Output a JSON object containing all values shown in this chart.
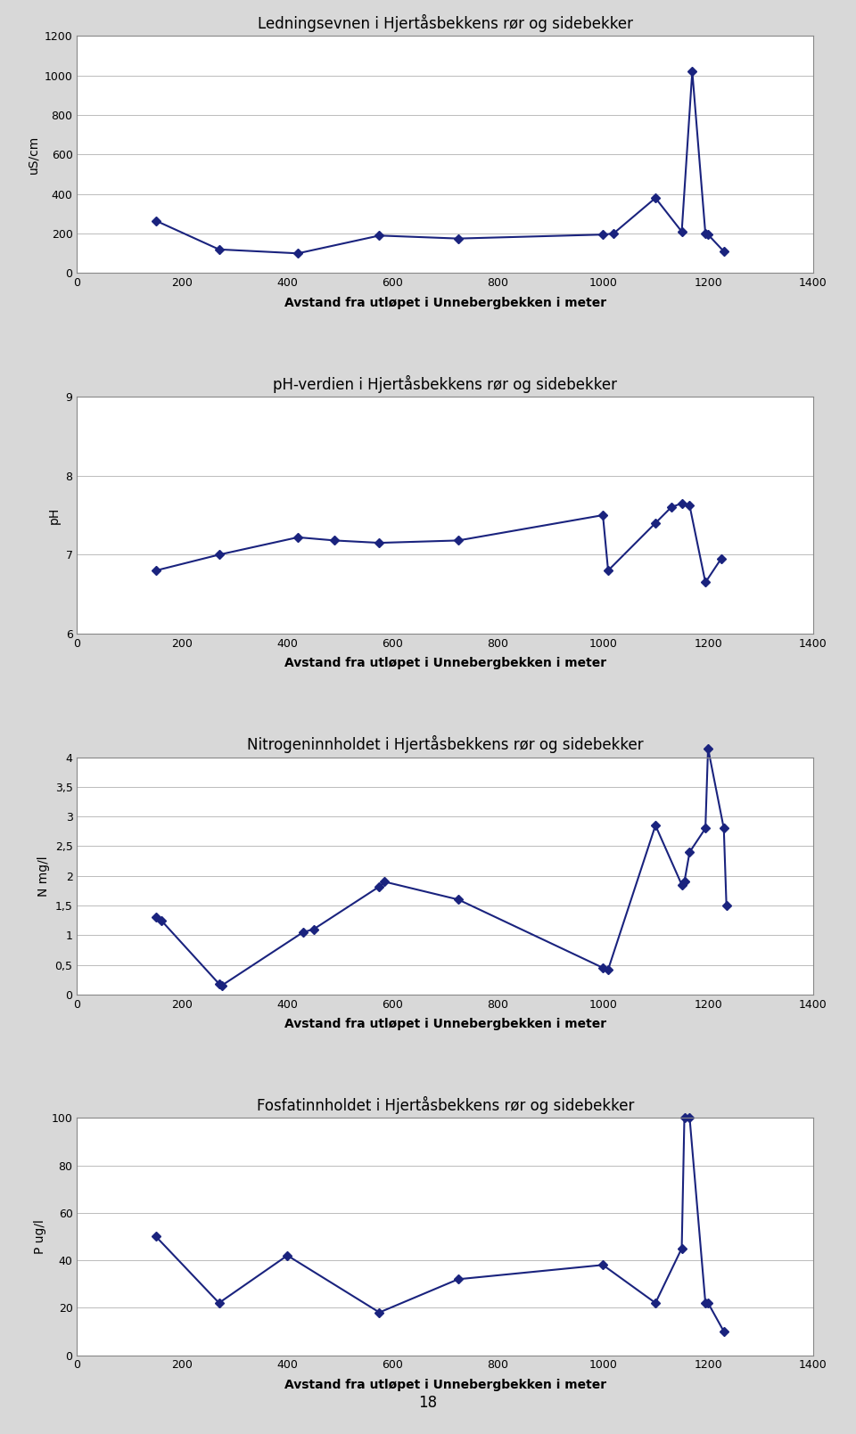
{
  "chart1": {
    "title": "Ledningsevnen i Hjertåsbekkens rør og sidebekker",
    "xlabel": "Avstand fra utløpet i Unnebergbekken i meter",
    "ylabel": "uS/cm",
    "x": [
      150,
      270,
      420,
      575,
      725,
      1000,
      1020,
      1100,
      1150,
      1170,
      1195,
      1200,
      1230
    ],
    "y": [
      265,
      120,
      100,
      190,
      175,
      195,
      200,
      380,
      210,
      1020,
      200,
      195,
      110
    ],
    "ylim": [
      0,
      1200
    ],
    "yticks": [
      0,
      200,
      400,
      600,
      800,
      1000,
      1200
    ],
    "xlim": [
      0,
      1400
    ],
    "xticks": [
      0,
      200,
      400,
      600,
      800,
      1000,
      1200,
      1400
    ]
  },
  "chart2": {
    "title": "pH-verdien i Hjertåsbekkens rør og sidebekker",
    "xlabel": "Avstand fra utløpet i Unnebergbekken i meter",
    "ylabel": "pH",
    "x": [
      150,
      270,
      420,
      490,
      575,
      725,
      1000,
      1010,
      1100,
      1130,
      1150,
      1165,
      1195,
      1225
    ],
    "y": [
      6.8,
      7.0,
      7.22,
      7.18,
      7.15,
      7.18,
      7.5,
      6.8,
      7.4,
      7.6,
      7.65,
      7.62,
      6.65,
      6.95
    ],
    "ylim": [
      6,
      9
    ],
    "yticks": [
      6,
      7,
      8,
      9
    ],
    "xlim": [
      0,
      1400
    ],
    "xticks": [
      0,
      200,
      400,
      600,
      800,
      1000,
      1200,
      1400
    ]
  },
  "chart3": {
    "title": "Nitrogeninnholdet i Hjertåsbekkens rør og sidebekker",
    "xlabel": "Avstand fra utløpet i Unnebergbekken i meter",
    "ylabel": "N mg/l",
    "x": [
      150,
      160,
      270,
      275,
      430,
      450,
      575,
      585,
      725,
      1000,
      1010,
      1100,
      1150,
      1155,
      1165,
      1195,
      1200,
      1230,
      1235
    ],
    "y": [
      1.3,
      1.25,
      0.18,
      0.15,
      1.05,
      1.1,
      1.82,
      1.9,
      1.6,
      0.45,
      0.42,
      2.85,
      1.85,
      1.9,
      2.4,
      2.8,
      4.15,
      2.8,
      1.5
    ],
    "ylim": [
      0,
      4
    ],
    "yticks": [
      0,
      0.5,
      1,
      1.5,
      2,
      2.5,
      3,
      3.5,
      4
    ],
    "yticklabels": [
      "0",
      "0,5",
      "1",
      "1,5",
      "2",
      "2,5",
      "3",
      "3,5",
      "4"
    ],
    "xlim": [
      0,
      1400
    ],
    "xticks": [
      0,
      200,
      400,
      600,
      800,
      1000,
      1200,
      1400
    ]
  },
  "chart4": {
    "title": "Fosfatinnholdet i Hjertåsbekkens rør og sidebekker",
    "xlabel": "Avstand fra utløpet i Unnebergbekken i meter",
    "ylabel": "P ug/l",
    "x": [
      150,
      270,
      400,
      575,
      725,
      1000,
      1100,
      1150,
      1155,
      1165,
      1195,
      1200,
      1230
    ],
    "y": [
      50,
      22,
      42,
      18,
      32,
      38,
      22,
      45,
      100,
      100,
      22,
      22,
      10
    ],
    "ylim": [
      0,
      100
    ],
    "yticks": [
      0,
      20,
      40,
      60,
      80,
      100
    ],
    "xlim": [
      0,
      1400
    ],
    "xticks": [
      0,
      200,
      400,
      600,
      800,
      1000,
      1200,
      1400
    ]
  },
  "line_color": "#1a237e",
  "marker": "D",
  "markersize": 5,
  "linewidth": 1.5,
  "bg_color": "#d8d8d8",
  "plot_bg_color": "#ffffff",
  "title_fontsize": 12,
  "label_fontsize": 10,
  "tick_fontsize": 9,
  "xlabel_fontweight": "bold",
  "page_number": "18"
}
